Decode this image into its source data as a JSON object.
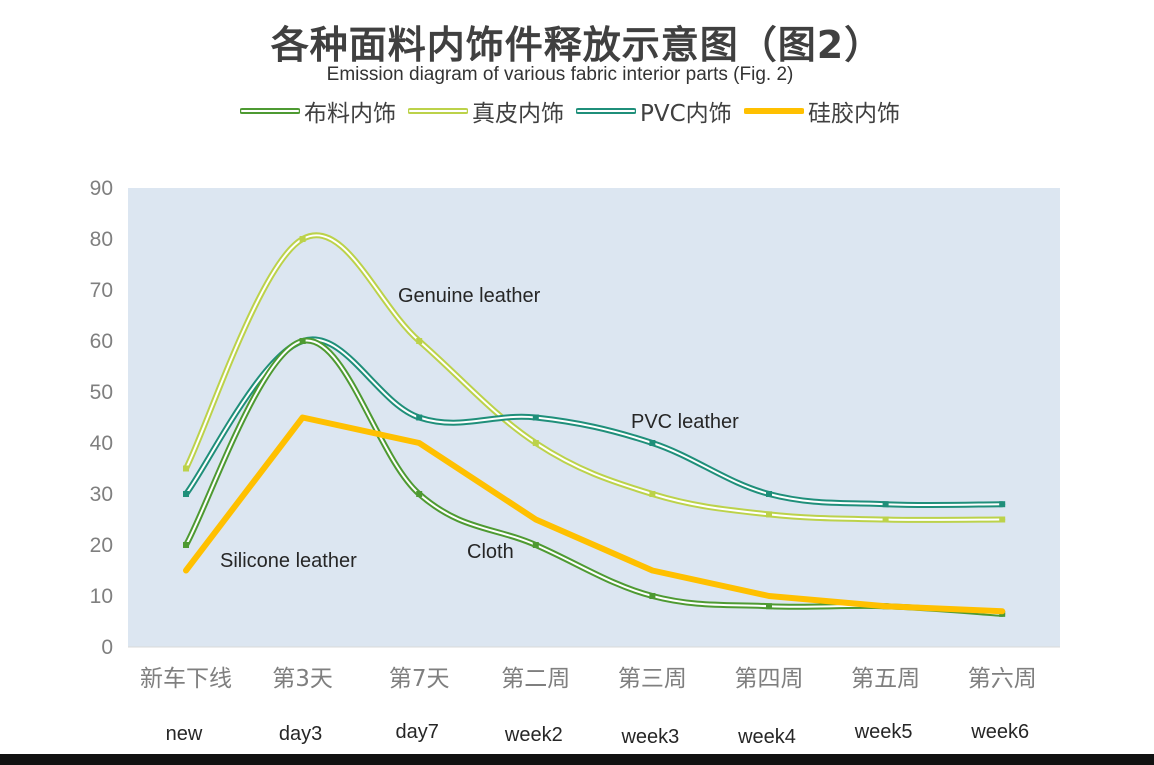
{
  "title": "各种面料内饰件释放示意图（图2）",
  "subtitle": "Emission diagram of various fabric interior parts (Fig. 2)",
  "colors": {
    "plot_background": "#dce6f1",
    "cloth": "#4e9a32",
    "genuine_leather": "#bcd24a",
    "pvc": "#1f8f7a",
    "silicone": "#ffc000"
  },
  "chart_data": {
    "type": "line",
    "title": "各种面料内饰件释放示意图（图2）",
    "subtitle": "Emission diagram of various fabric interior parts (Fig. 2)",
    "categories": [
      "新车下线",
      "第3天",
      "第7天",
      "第二周",
      "第三周",
      "第四周",
      "第五周",
      "第六周"
    ],
    "categories_en": [
      "new",
      "day3",
      "day7",
      "week2",
      "week3",
      "week4",
      "week5",
      "week6"
    ],
    "ylim": [
      0,
      90
    ],
    "yticks": [
      0,
      10,
      20,
      30,
      40,
      50,
      60,
      70,
      80,
      90
    ],
    "grid": false,
    "legend_position": "top",
    "series": [
      {
        "name": "布料内饰",
        "values": [
          20,
          60,
          30,
          20,
          10,
          8,
          8,
          6.5
        ],
        "style": "double",
        "annotation": "Cloth"
      },
      {
        "name": "真皮内饰",
        "values": [
          35,
          80,
          60,
          40,
          30,
          26,
          25,
          25
        ],
        "style": "double",
        "annotation": "Genuine leather"
      },
      {
        "name": "PVC内饰",
        "values": [
          30,
          60,
          45,
          45,
          40,
          30,
          28,
          28
        ],
        "style": "double",
        "annotation": "PVC leather"
      },
      {
        "name": "硅胶内饰",
        "values": [
          15,
          45,
          40,
          25,
          15,
          10,
          8,
          7
        ],
        "style": "solid",
        "annotation": "Silicone leather"
      }
    ]
  }
}
